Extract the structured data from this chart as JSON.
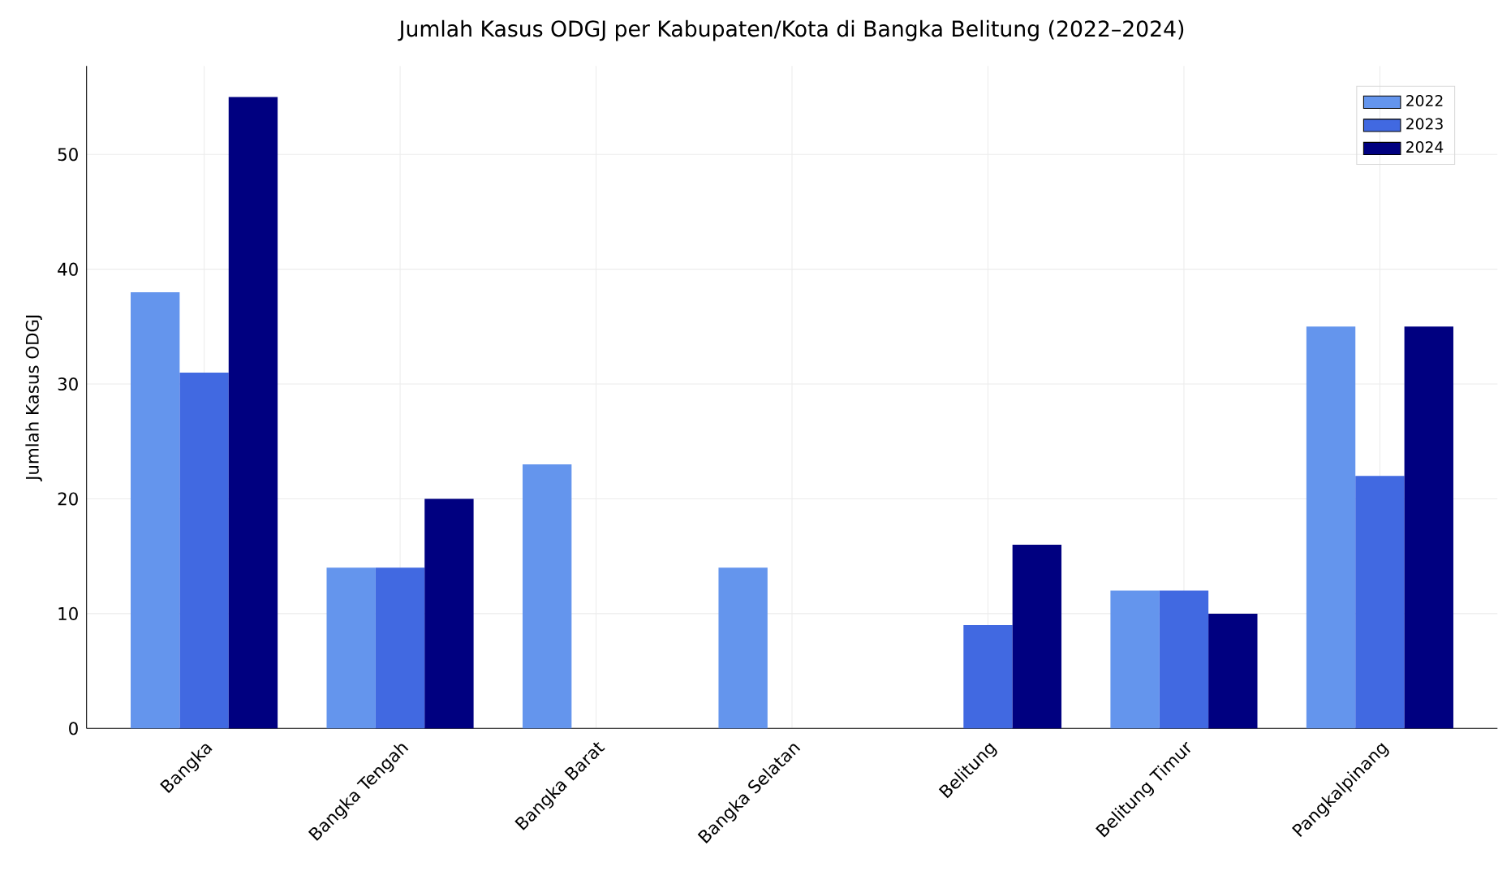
{
  "chart_data": {
    "type": "bar",
    "title": "Jumlah Kasus ODGJ per Kabupaten/Kota di Bangka Belitung (2022–2024)",
    "ylabel": "Jumlah Kasus ODGJ",
    "categories": [
      "Bangka",
      "Bangka Tengah",
      "Bangka Barat",
      "Bangka Selatan",
      "Belitung",
      "Belitung Timur",
      "Pangkalpinang"
    ],
    "series": [
      {
        "name": "2022",
        "color": "#6495ed",
        "values": [
          38,
          14,
          23,
          14,
          null,
          12,
          35
        ]
      },
      {
        "name": "2023",
        "color": "#4169e1",
        "values": [
          31,
          14,
          null,
          null,
          9,
          12,
          22
        ]
      },
      {
        "name": "2024",
        "color": "#000080",
        "values": [
          55,
          20,
          null,
          null,
          16,
          10,
          35
        ]
      }
    ],
    "ylim": [
      0,
      57.7
    ],
    "yticks": [
      0,
      10,
      20,
      30,
      40,
      50
    ],
    "grid": true,
    "legend": "top right"
  }
}
